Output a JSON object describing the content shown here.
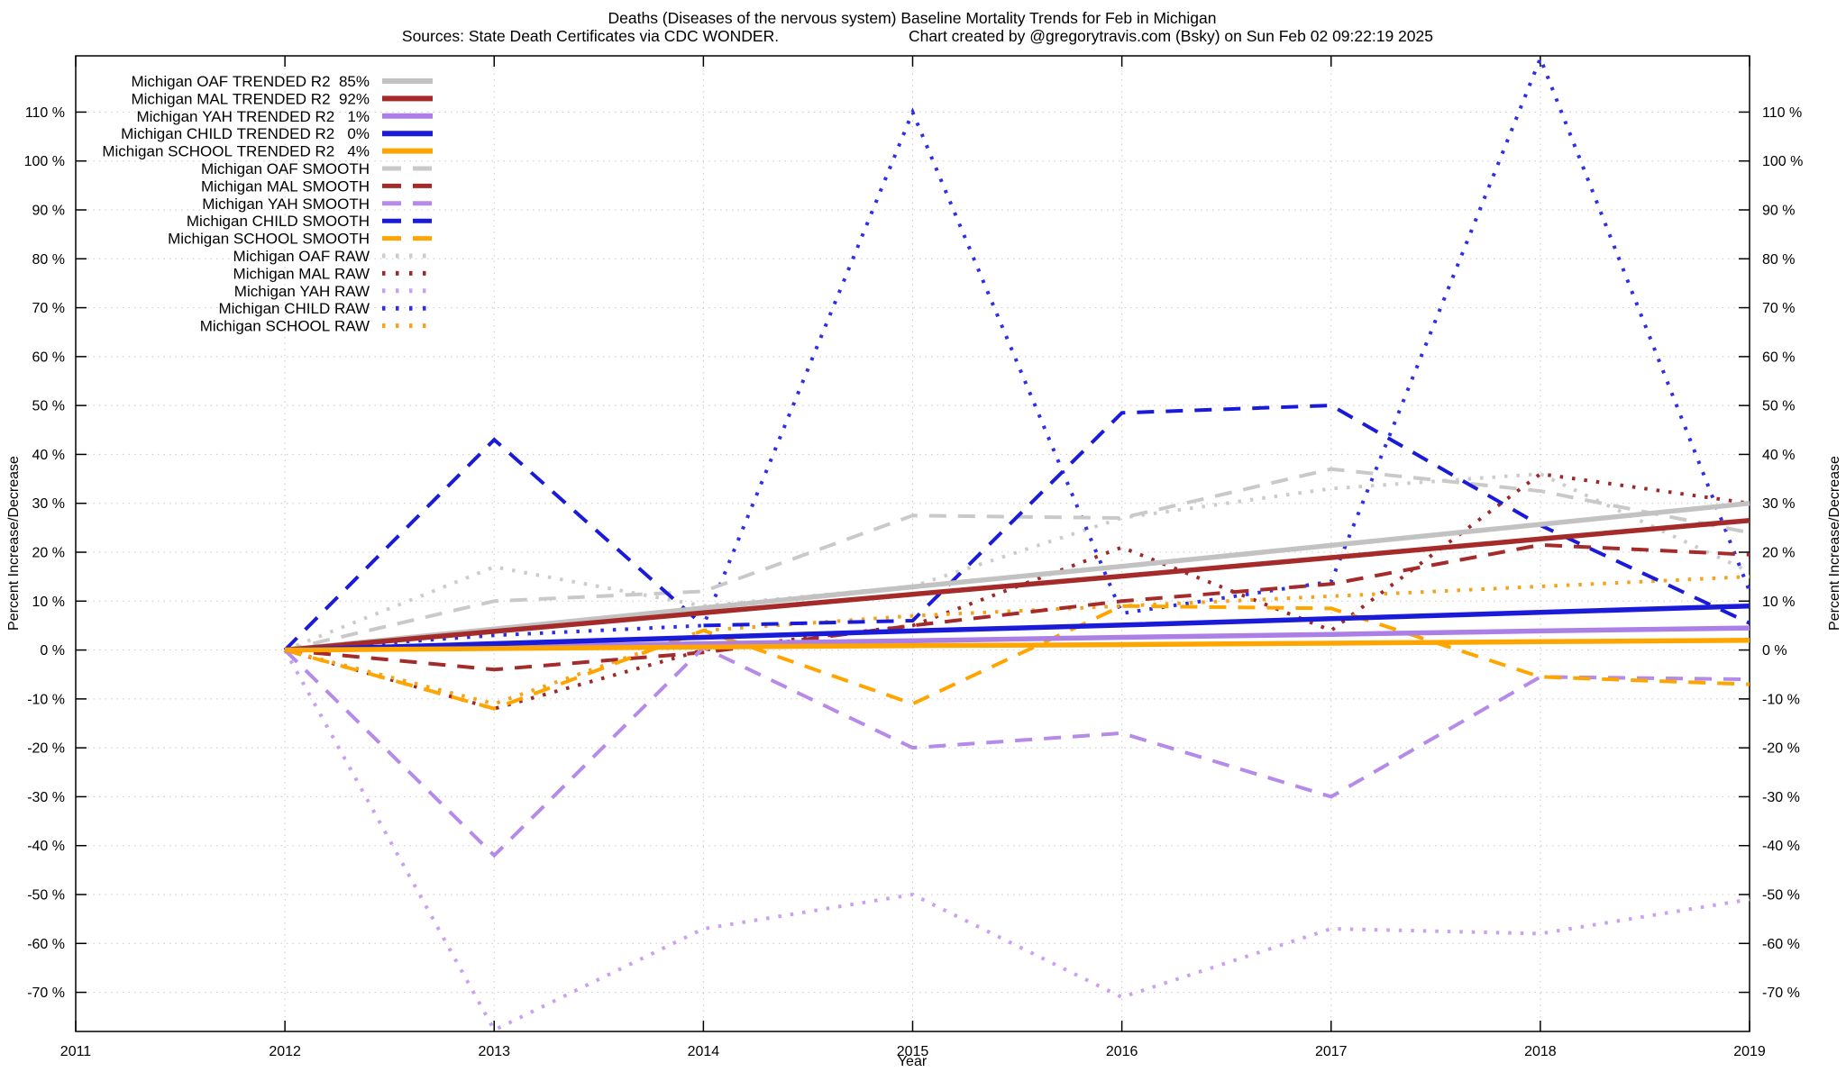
{
  "title": {
    "line1": "Deaths (Diseases of the nervous system)  Baseline Mortality Trends for Feb in Michigan",
    "sources": "Sources: State Death Certificates via CDC WONDER.",
    "created": "Chart created by @gregorytravis.com (Bsky) on Sun Feb 02 09:22:19 2025"
  },
  "axes": {
    "y_left_label": "Percent Increase/Decrease",
    "y_right_label": "Percent Increase/Decrease",
    "x_label": "Year",
    "y_tick_suffix": " %"
  },
  "colors": {
    "background": "#ffffff",
    "grid": "#c8c8c8",
    "axis": "#000000",
    "oaf": "#c2c2c2",
    "mal": "#a52a2a",
    "yah": "#ab7fe6",
    "child": "#1a1ad9",
    "school": "#ffa500"
  },
  "chart_data": {
    "type": "line",
    "x": [
      2012,
      2013,
      2014,
      2015,
      2016,
      2017,
      2018,
      2019
    ],
    "xlim": [
      2011,
      2019
    ],
    "ylim": [
      -78,
      121.5
    ],
    "x_ticks": [
      2011,
      2012,
      2013,
      2014,
      2015,
      2016,
      2017,
      2018,
      2019
    ],
    "y_ticks": [
      -70,
      -60,
      -50,
      -40,
      -30,
      -20,
      -10,
      0,
      10,
      20,
      30,
      40,
      50,
      60,
      70,
      80,
      90,
      100,
      110
    ],
    "grid": true,
    "legend_position": "top-left-inside",
    "series": [
      {
        "name": "Michigan OAF TRENDED R2  85%",
        "group": "OAF",
        "style": "trended",
        "color": "#c2c2c2",
        "values": [
          0,
          4.3,
          8.6,
          12.9,
          17.1,
          21.4,
          25.7,
          30
        ]
      },
      {
        "name": "Michigan MAL TRENDED R2  92%",
        "group": "MAL",
        "style": "trended",
        "color": "#a52a2a",
        "values": [
          0,
          3.8,
          7.6,
          11.4,
          15.1,
          18.9,
          22.7,
          26.5
        ]
      },
      {
        "name": "Michigan YAH TRENDED R2   1%",
        "group": "YAH",
        "style": "trended",
        "color": "#ab7fe6",
        "values": [
          0,
          0.6,
          1.3,
          1.9,
          2.6,
          3.2,
          3.9,
          4.5
        ]
      },
      {
        "name": "Michigan CHILD TRENDED R2   0%",
        "group": "CHILD",
        "style": "trended",
        "color": "#1a1ad9",
        "values": [
          0,
          1.3,
          2.6,
          3.9,
          5.1,
          6.4,
          7.7,
          9
        ]
      },
      {
        "name": "Michigan SCHOOL TRENDED R2   4%",
        "group": "SCHOOL",
        "style": "trended",
        "color": "#ffa500",
        "values": [
          0,
          0.3,
          0.6,
          0.9,
          1.1,
          1.4,
          1.7,
          2
        ]
      },
      {
        "name": "Michigan OAF SMOOTH",
        "group": "OAF",
        "style": "smooth",
        "color": "#c9c9c9",
        "values": [
          0,
          10,
          12,
          27.5,
          27,
          37,
          32.5,
          24
        ]
      },
      {
        "name": "Michigan MAL SMOOTH",
        "group": "MAL",
        "style": "smooth",
        "color": "#a52a2a",
        "values": [
          0,
          -4,
          -0.5,
          5,
          10,
          13.5,
          21.5,
          19.5
        ]
      },
      {
        "name": "Michigan YAH SMOOTH",
        "group": "YAH",
        "style": "smooth",
        "color": "#b58ae9",
        "values": [
          0,
          -42,
          0.5,
          -20,
          -17,
          -30,
          -5.5,
          -6
        ]
      },
      {
        "name": "Michigan CHILD SMOOTH",
        "group": "CHILD",
        "style": "smooth",
        "color": "#1a1ad9",
        "values": [
          0,
          43,
          5,
          6,
          48.5,
          50,
          25.5,
          5.5
        ]
      },
      {
        "name": "Michigan SCHOOL SMOOTH",
        "group": "SCHOOL",
        "style": "smooth",
        "color": "#ffa500",
        "values": [
          0,
          -12,
          4,
          -11,
          9,
          8.5,
          -5.5,
          -7
        ]
      },
      {
        "name": "Michigan OAF RAW",
        "group": "OAF",
        "style": "raw",
        "color": "#cccccc",
        "values": [
          0,
          17,
          9,
          13,
          27,
          33,
          36,
          16
        ]
      },
      {
        "name": "Michigan MAL RAW",
        "group": "MAL",
        "style": "raw",
        "color": "#9e2828",
        "values": [
          0,
          -12,
          0,
          5,
          21,
          4,
          36,
          30
        ]
      },
      {
        "name": "Michigan YAH RAW",
        "group": "YAH",
        "style": "raw",
        "color": "#c9a0f2",
        "values": [
          0,
          -77.7,
          -57,
          -50,
          -71,
          -57,
          -58,
          -51
        ]
      },
      {
        "name": "Michigan CHILD RAW",
        "group": "CHILD",
        "style": "raw",
        "color": "#2e2ee8",
        "values": [
          0,
          3,
          5,
          110,
          7.5,
          14,
          121,
          12
        ]
      },
      {
        "name": "Michigan SCHOOL RAW",
        "group": "SCHOOL",
        "style": "raw",
        "color": "#f5a31e",
        "values": [
          0,
          -11,
          4,
          7,
          9,
          11,
          13,
          15
        ]
      }
    ]
  }
}
